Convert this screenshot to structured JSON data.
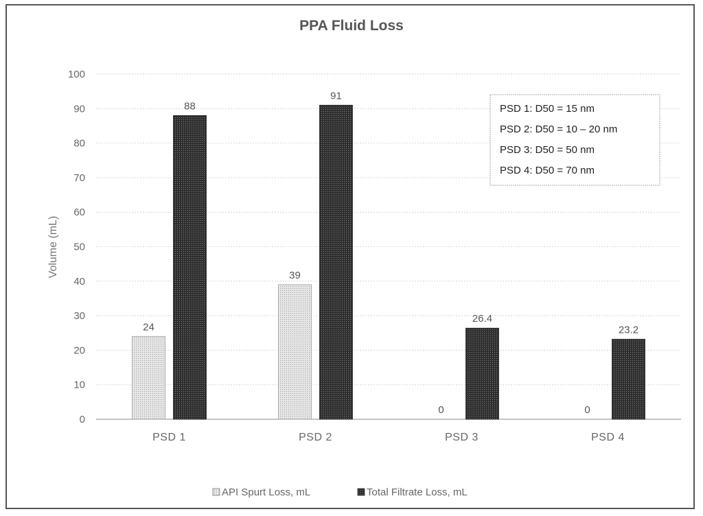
{
  "chart_data": {
    "type": "bar",
    "title": "PPA Fluid Loss",
    "xlabel": "",
    "ylabel": "Volume (mL)",
    "ylim": [
      0,
      100
    ],
    "yticks": [
      0,
      10,
      20,
      30,
      40,
      50,
      60,
      70,
      80,
      90,
      100
    ],
    "categories": [
      "PSD 1",
      "PSD 2",
      "PSD 3",
      "PSD 4"
    ],
    "series": [
      {
        "name": "API Spurt Loss, mL",
        "values": [
          24,
          39,
          0,
          0
        ],
        "labels": [
          "24",
          "39",
          "0",
          "0"
        ],
        "color": "#d9d9d9"
      },
      {
        "name": "Total Filtrate Loss, mL",
        "values": [
          88,
          91,
          26.4,
          23.2
        ],
        "labels": [
          "88",
          "91",
          "26.4",
          "23.2"
        ],
        "color": "#333333"
      }
    ],
    "annotations": [
      "PSD 1: D50 = 15 nm",
      "PSD 2: D50 = 10 – 20 nm",
      "PSD 3: D50 = 50 nm",
      "PSD 4: D50 = 70 nm"
    ],
    "grid": true,
    "legend_position": "bottom"
  }
}
